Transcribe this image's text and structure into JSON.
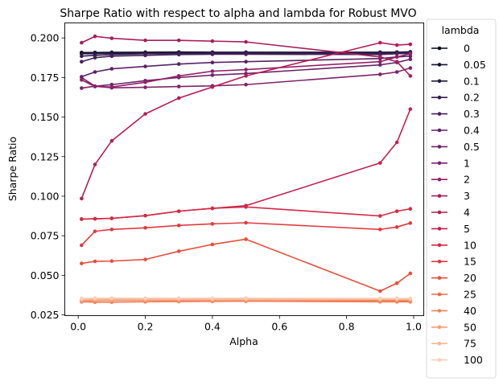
{
  "chart_data": {
    "type": "line",
    "title": "Sharpe Ratio with respect to alpha and lambda for Robust MVO",
    "xlabel": "Alpha",
    "ylabel": "Sharpe Ratio",
    "xlim": [
      -0.04,
      1.03
    ],
    "ylim": [
      0.0245,
      0.2095
    ],
    "xticks": [
      0.0,
      0.2,
      0.4,
      0.6,
      0.8,
      1.0
    ],
    "xtick_labels": [
      "0.0",
      "0.2",
      "0.4",
      "0.6",
      "0.8",
      "1.0"
    ],
    "yticks": [
      0.025,
      0.05,
      0.075,
      0.1,
      0.125,
      0.15,
      0.175,
      0.2
    ],
    "ytick_labels": [
      "0.025",
      "0.050",
      "0.075",
      "0.100",
      "0.125",
      "0.150",
      "0.175",
      "0.200"
    ],
    "grid": false,
    "legend_title": "lambda",
    "legend_position": "outside-right",
    "x": [
      0.01,
      0.05,
      0.1,
      0.2,
      0.3,
      0.4,
      0.5,
      0.9,
      0.95,
      0.99
    ],
    "series": [
      {
        "name": "0",
        "color": "#03051a",
        "values": [
          0.1905,
          0.1905,
          0.1905,
          0.1905,
          0.1905,
          0.1905,
          0.1905,
          0.1905,
          0.1905,
          0.1905
        ]
      },
      {
        "name": "0.05",
        "color": "#10112b",
        "values": [
          0.1908,
          0.1908,
          0.1909,
          0.191,
          0.1911,
          0.191,
          0.191,
          0.191,
          0.191,
          0.1912
        ]
      },
      {
        "name": "0.1",
        "color": "#21183d",
        "values": [
          0.19,
          0.1901,
          0.1903,
          0.1905,
          0.1907,
          0.1908,
          0.1907,
          0.1908,
          0.191,
          0.1912
        ]
      },
      {
        "name": "0.2",
        "color": "#341e4d",
        "values": [
          0.1885,
          0.189,
          0.1895,
          0.19,
          0.1902,
          0.1903,
          0.1903,
          0.1903,
          0.1905,
          0.1908
        ]
      },
      {
        "name": "0.3",
        "color": "#47215b",
        "values": [
          0.185,
          0.1875,
          0.1885,
          0.189,
          0.1895,
          0.1897,
          0.1897,
          0.1895,
          0.19,
          0.1902
        ]
      },
      {
        "name": "0.4",
        "color": "#592364",
        "values": [
          0.1755,
          0.1785,
          0.1805,
          0.182,
          0.1835,
          0.1845,
          0.185,
          0.187,
          0.188,
          0.1885
        ]
      },
      {
        "name": "0.5",
        "color": "#6c2468",
        "values": [
          0.175,
          0.1695,
          0.1705,
          0.173,
          0.175,
          0.1765,
          0.1775,
          0.183,
          0.1845,
          0.1865
        ]
      },
      {
        "name": "1",
        "color": "#7f2469",
        "values": [
          0.1683,
          0.1695,
          0.1685,
          0.1688,
          0.1693,
          0.1697,
          0.1705,
          0.177,
          0.1785,
          0.181
        ]
      },
      {
        "name": "2",
        "color": "#932168",
        "values": [
          0.1735,
          0.1693,
          0.169,
          0.172,
          0.176,
          0.179,
          0.18,
          0.185,
          0.188,
          0.19
        ]
      },
      {
        "name": "3",
        "color": "#a51f5e",
        "values": [
          0.197,
          0.201,
          0.1998,
          0.1985,
          0.1985,
          0.198,
          0.1975,
          0.188,
          0.185,
          0.176
        ]
      },
      {
        "name": "4",
        "color": "#b61e54",
        "values": [
          0.0985,
          0.12,
          0.135,
          0.152,
          0.162,
          0.169,
          0.176,
          0.197,
          0.1955,
          0.196
        ]
      },
      {
        "name": "5",
        "color": "#c5214e",
        "values": [
          0.0855,
          0.0857,
          0.086,
          0.0877,
          0.0905,
          0.0923,
          0.094,
          0.121,
          0.134,
          0.155
        ]
      },
      {
        "name": "10",
        "color": "#d32b46",
        "values": [
          0.0855,
          0.0857,
          0.086,
          0.0877,
          0.0905,
          0.0923,
          0.0932,
          0.0875,
          0.0905,
          0.092
        ]
      },
      {
        "name": "15",
        "color": "#e03a40",
        "values": [
          0.069,
          0.0778,
          0.079,
          0.08,
          0.0815,
          0.0825,
          0.0832,
          0.079,
          0.0805,
          0.083
        ]
      },
      {
        "name": "20",
        "color": "#e84e3d",
        "values": [
          0.0575,
          0.0588,
          0.059,
          0.06,
          0.0652,
          0.0695,
          0.0728,
          0.04,
          0.045,
          0.0512
        ]
      },
      {
        "name": "25",
        "color": "#ef6844",
        "values": [
          0.0335,
          0.0332,
          0.0332,
          0.0334,
          0.0335,
          0.0336,
          0.0337,
          0.034,
          0.0338,
          0.0338
        ]
      },
      {
        "name": "40",
        "color": "#f3825a",
        "values": [
          0.0332,
          0.033,
          0.033,
          0.0332,
          0.0334,
          0.0335,
          0.0336,
          0.0332,
          0.0332,
          0.0332
        ]
      },
      {
        "name": "50",
        "color": "#f59d76",
        "values": [
          0.034,
          0.0342,
          0.0343,
          0.0343,
          0.0343,
          0.0343,
          0.0343,
          0.0345,
          0.0345,
          0.0343
        ]
      },
      {
        "name": "75",
        "color": "#f6b696",
        "values": [
          0.0347,
          0.0348,
          0.0349,
          0.0348,
          0.0348,
          0.0348,
          0.0348,
          0.0348,
          0.0348,
          0.0349
        ]
      },
      {
        "name": "100",
        "color": "#f7d0b8",
        "values": [
          0.0354,
          0.0355,
          0.0356,
          0.0355,
          0.0355,
          0.0355,
          0.0355,
          0.0354,
          0.0354,
          0.0354
        ]
      }
    ]
  }
}
